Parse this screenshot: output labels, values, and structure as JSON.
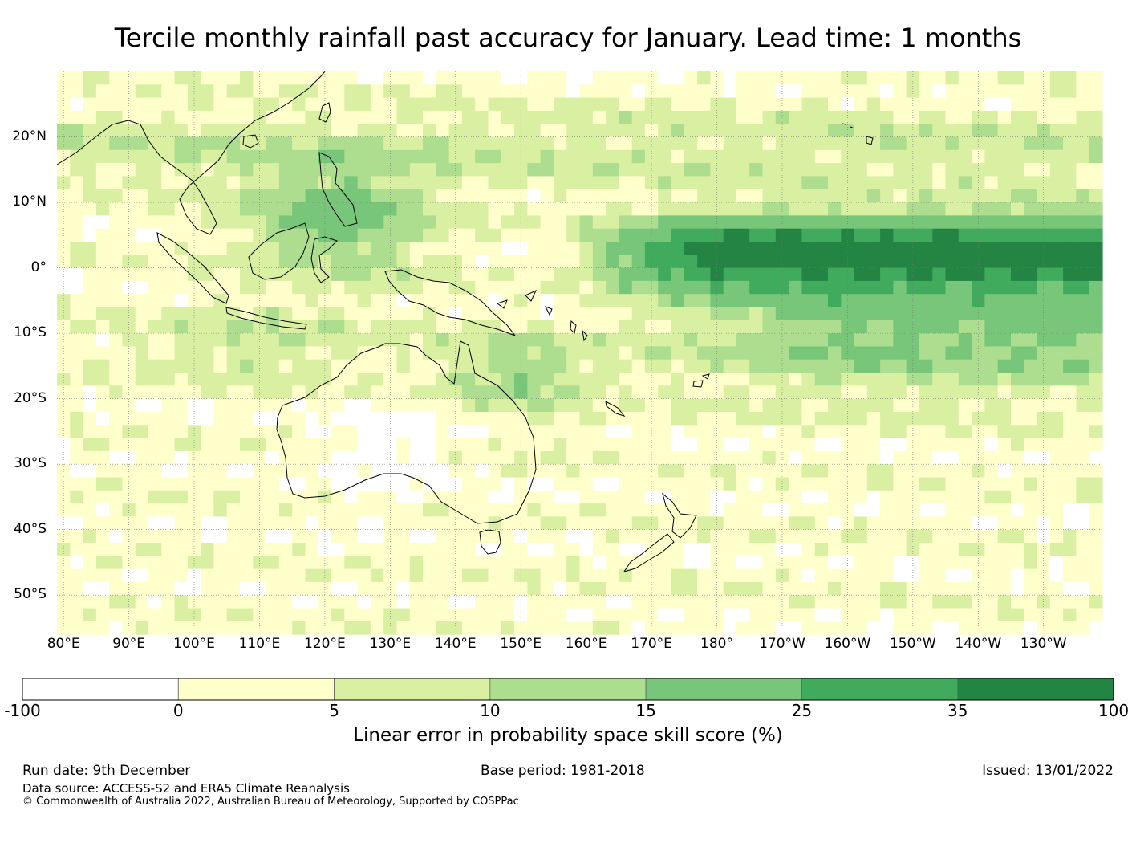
{
  "title": "Tercile monthly rainfall past accuracy for January. Lead time: 1 months",
  "map": {
    "lat_labels": [
      "20°N",
      "10°N",
      "0°",
      "10°S",
      "20°S",
      "30°S",
      "40°S",
      "50°S"
    ],
    "lon_labels": [
      "80°E",
      "90°E",
      "100°E",
      "110°E",
      "120°E",
      "130°E",
      "140°E",
      "150°E",
      "160°E",
      "170°E",
      "180°",
      "170°W",
      "160°W",
      "150°W",
      "140°W",
      "130°W"
    ],
    "lat_values": [
      20,
      10,
      0,
      -10,
      -20,
      -30,
      -40,
      -50
    ],
    "lon_values": [
      80,
      90,
      100,
      110,
      120,
      130,
      140,
      150,
      160,
      170,
      180,
      190,
      200,
      210,
      220,
      230
    ],
    "extent": {
      "lon_min": 79,
      "lon_max": 239,
      "lat_min": -55,
      "lat_max": 30
    },
    "gridlines": true
  },
  "colorbar": {
    "label": "Linear error in probability space skill score (%)",
    "ticks": [
      "-100",
      "0",
      "5",
      "10",
      "15",
      "25",
      "35",
      "100"
    ],
    "colors": [
      "#ffffff",
      "#ffffcc",
      "#d9f0a3",
      "#addd8e",
      "#78c679",
      "#41ab5d",
      "#238443"
    ]
  },
  "footer": {
    "run_date": "Run date: 9th December",
    "base_period": "Base period: 1981-2018",
    "issued": "Issued: 13/01/2022",
    "data_source": "Data source: ACCESS-S2 and ERA5 Climate Reanalysis",
    "copyright": "© Commonwealth of Australia 2022, Australian Bureau of Meteorology, Supported by COSPPac"
  }
}
